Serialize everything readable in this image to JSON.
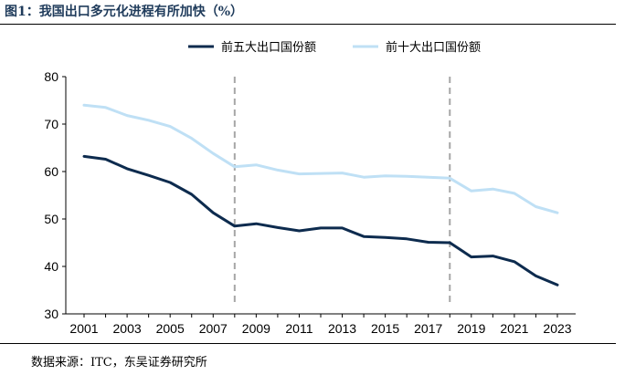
{
  "figure": {
    "title": "图1：我国出口多元化进程有所加快（%）",
    "source": "数据来源：ITC，东吴证券研究所"
  },
  "chart_data": {
    "type": "line",
    "title": "",
    "xlabel": "",
    "ylabel": "",
    "x": [
      2001,
      2002,
      2003,
      2004,
      2005,
      2006,
      2007,
      2008,
      2009,
      2010,
      2011,
      2012,
      2013,
      2014,
      2015,
      2016,
      2017,
      2018,
      2019,
      2020,
      2021,
      2022,
      2023
    ],
    "xticks": [
      2001,
      2003,
      2005,
      2007,
      2009,
      2011,
      2013,
      2015,
      2017,
      2019,
      2021,
      2023
    ],
    "ylim": [
      30,
      80
    ],
    "yticks": [
      30,
      40,
      50,
      60,
      70,
      80
    ],
    "grid": false,
    "legend_position": "top-center",
    "reference_lines_x": [
      2008,
      2018
    ],
    "series": [
      {
        "name": "前五大出口国份额",
        "color": "#0d2b4e",
        "values": [
          63.2,
          62.6,
          60.6,
          59.2,
          57.7,
          55.2,
          51.3,
          48.5,
          49.0,
          48.2,
          47.5,
          48.1,
          48.1,
          46.3,
          46.1,
          45.8,
          45.1,
          45.0,
          42.0,
          42.2,
          41.0,
          38.0,
          36.1
        ]
      },
      {
        "name": "前十大出口国份额",
        "color": "#bfe0f5",
        "values": [
          74.0,
          73.5,
          71.8,
          70.8,
          69.5,
          67.0,
          63.8,
          61.0,
          61.4,
          60.3,
          59.5,
          59.6,
          59.7,
          58.8,
          59.1,
          59.0,
          58.8,
          58.6,
          55.9,
          56.3,
          55.4,
          52.6,
          51.3
        ]
      }
    ]
  }
}
